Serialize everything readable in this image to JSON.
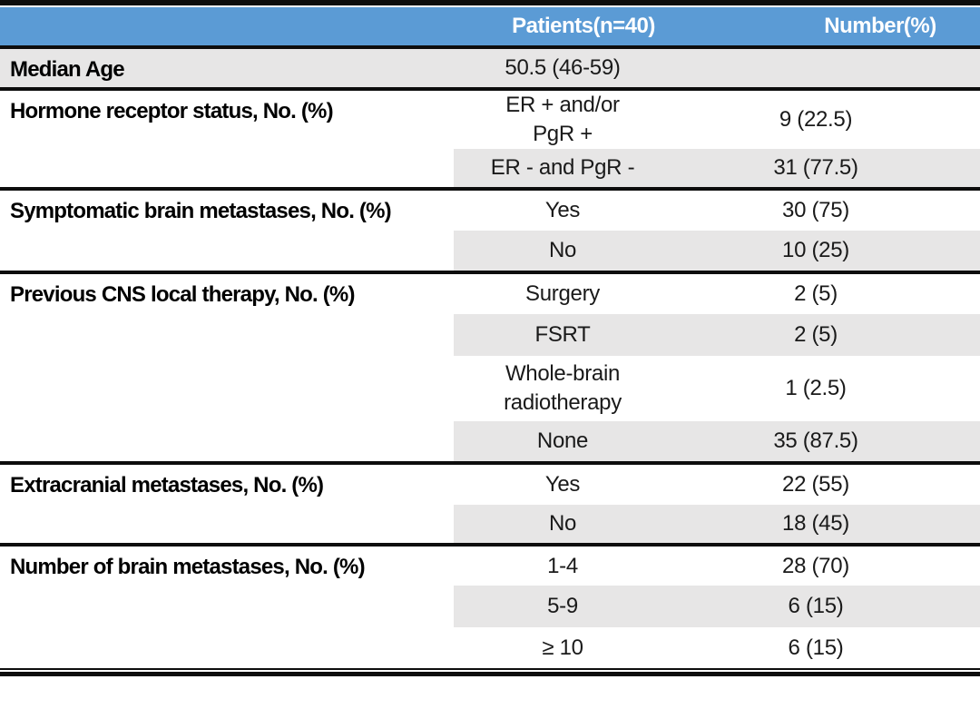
{
  "colors": {
    "header_bg": "#5B9BD5",
    "header_text": "#FFFFFF",
    "shade_bg": "#E7E6E6",
    "rule": "#0D0D0D",
    "body_text": "#1A1A1A"
  },
  "header": {
    "patients": "Patients(n=40)",
    "number": "Number(%)"
  },
  "median": {
    "label": "Median Age",
    "patients": "50.5 (46-59)",
    "number": ""
  },
  "sections": [
    {
      "label": "Hormone receptor status, No. (%)",
      "rows": [
        {
          "patients_lines": [
            "ER + and/or",
            "PgR +"
          ],
          "number": "9 (22.5)"
        },
        {
          "patients": "ER - and PgR -",
          "number": "31 (77.5)"
        }
      ]
    },
    {
      "label": "Symptomatic brain metastases, No. (%)",
      "rows": [
        {
          "patients": "Yes",
          "number": "30 (75)"
        },
        {
          "patients": "No",
          "number": "10 (25)"
        }
      ]
    },
    {
      "label": "Previous CNS local therapy, No. (%)",
      "rows": [
        {
          "patients": "Surgery",
          "number": "2 (5)"
        },
        {
          "patients": "FSRT",
          "number": "2 (5)"
        },
        {
          "patients_lines": [
            "Whole-brain",
            "radiotherapy"
          ],
          "number": "1 (2.5)"
        },
        {
          "patients": "None",
          "number": "35 (87.5)"
        }
      ]
    },
    {
      "label": "Extracranial metastases, No. (%)",
      "rows": [
        {
          "patients": "Yes",
          "number": "22 (55)"
        },
        {
          "patients": "No",
          "number": "18 (45)"
        }
      ]
    },
    {
      "label": "Number of brain metastases, No. (%)",
      "rows": [
        {
          "patients": "1-4",
          "number": "28 (70)"
        },
        {
          "patients": "5-9",
          "number": "6 (15)"
        },
        {
          "patients": "≥ 10",
          "number": "6 (15)"
        }
      ]
    }
  ]
}
